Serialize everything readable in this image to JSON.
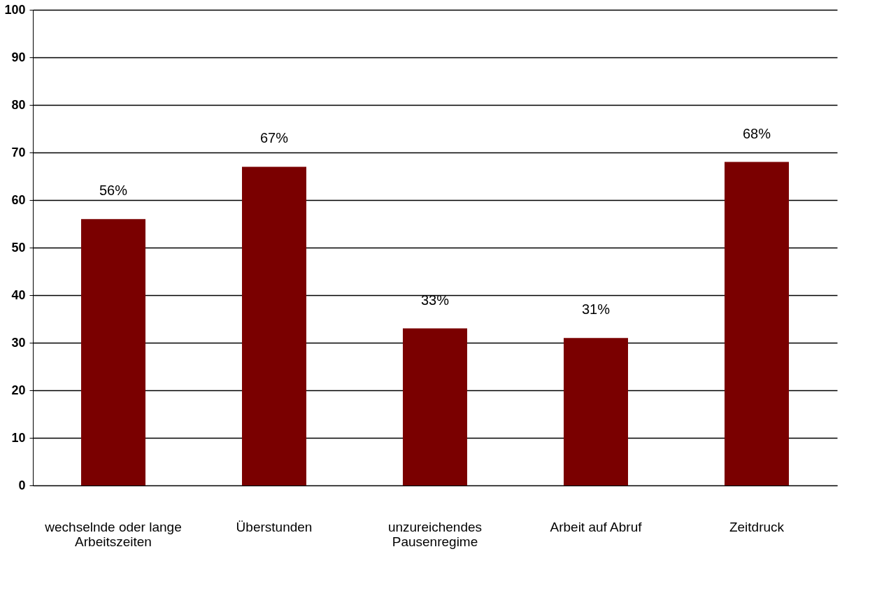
{
  "chart_data": {
    "type": "bar",
    "categories": [
      "wechselnde oder lange Arbeitszeiten",
      "Überstunden",
      "unzureichendes Pausenregime",
      "Arbeit auf Abruf",
      "Zeitdruck"
    ],
    "values": [
      56,
      67,
      33,
      31,
      68
    ],
    "value_labels": [
      "56%",
      "67%",
      "33%",
      "31%",
      "68%"
    ],
    "color": "#7a0000",
    "ylim": [
      0,
      100
    ],
    "yticks": [
      0,
      10,
      20,
      30,
      40,
      50,
      60,
      70,
      80,
      90,
      100
    ],
    "grid": "y"
  }
}
